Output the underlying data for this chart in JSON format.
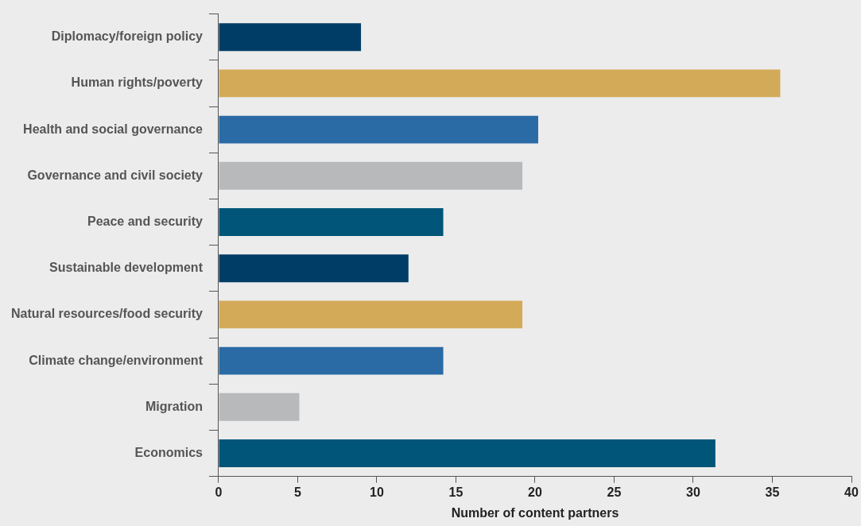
{
  "chart_data": {
    "type": "bar",
    "orientation": "horizontal",
    "xlabel": "Number of content partners",
    "categories": [
      "Diplomacy/foreign policy",
      "Human rights/poverty",
      "Health and social governance",
      "Governance and civil society",
      "Peace and security",
      "Sustainable development",
      "Natural resources/food security",
      "Climate change/environment",
      "Migration",
      "Economics"
    ],
    "values": [
      9,
      35.5,
      20.2,
      19.2,
      14.2,
      12,
      19.2,
      14.2,
      5.1,
      31.4
    ],
    "colors": [
      "#003d66",
      "#d3aa58",
      "#2a6aa5",
      "#b8b9bb",
      "#005579",
      "#003d66",
      "#d3aa58",
      "#2a6aa5",
      "#b8b9bb",
      "#005579"
    ],
    "xlim": [
      0,
      40
    ],
    "xticks": [
      0,
      5,
      10,
      15,
      20,
      25,
      30,
      35,
      40
    ],
    "grid": false,
    "legend": false
  }
}
